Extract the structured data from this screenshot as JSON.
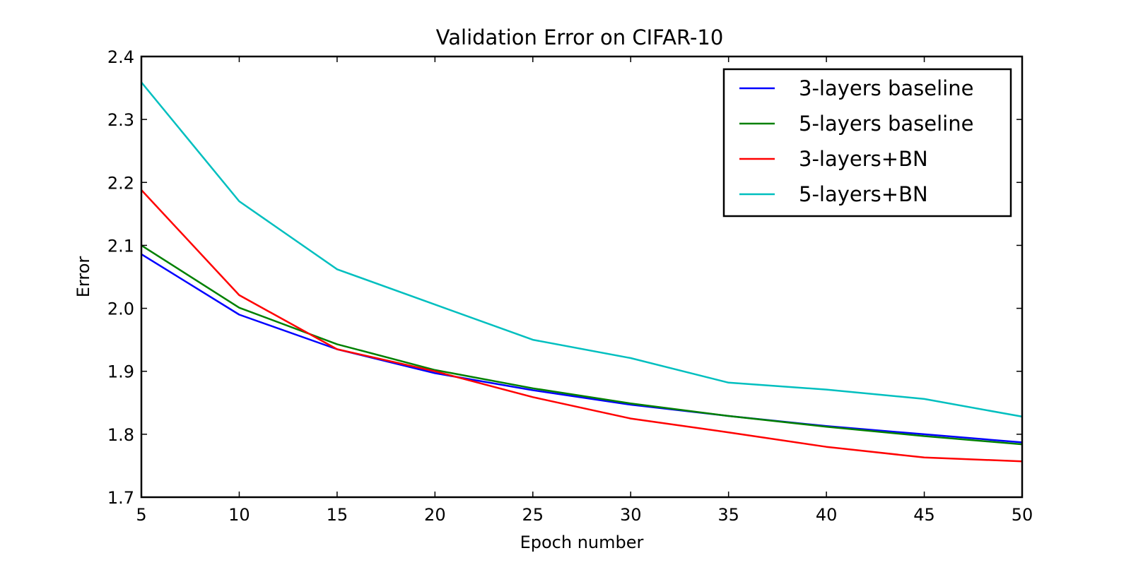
{
  "chart_data": {
    "type": "line",
    "title": "Validation Error on CIFAR-10",
    "xlabel": "Epoch number",
    "ylabel": "Error",
    "xlim": [
      5,
      50
    ],
    "ylim": [
      1.7,
      2.4
    ],
    "xticks": [
      5,
      10,
      15,
      20,
      25,
      30,
      35,
      40,
      45,
      50
    ],
    "xtick_labels": [
      "5",
      "10",
      "15",
      "20",
      "25",
      "30",
      "35",
      "40",
      "45",
      "50"
    ],
    "yticks": [
      1.7,
      1.8,
      1.9,
      2.0,
      2.1,
      2.2,
      2.3,
      2.4
    ],
    "ytick_labels": [
      "1.7",
      "1.8",
      "1.9",
      "2.0",
      "2.1",
      "2.2",
      "2.3",
      "2.4"
    ],
    "grid": false,
    "legend_position": "top-right",
    "x": [
      5,
      10,
      15,
      20,
      25,
      30,
      35,
      40,
      45,
      50
    ],
    "series": [
      {
        "name": "3-layers baseline",
        "color": "#0000ff",
        "values": [
          2.086,
          1.99,
          1.935,
          1.897,
          1.87,
          1.847,
          1.829,
          1.813,
          1.8,
          1.787
        ]
      },
      {
        "name": "5-layers baseline",
        "color": "#008000",
        "values": [
          2.1,
          2.001,
          1.943,
          1.902,
          1.873,
          1.849,
          1.829,
          1.812,
          1.797,
          1.784
        ]
      },
      {
        "name": "3-layers+BN",
        "color": "#ff0000",
        "values": [
          2.188,
          2.021,
          1.935,
          1.9,
          1.859,
          1.825,
          1.803,
          1.78,
          1.763,
          1.757
        ]
      },
      {
        "name": "5-layers+BN",
        "color": "#00bfbf",
        "values": [
          2.359,
          2.17,
          2.062,
          2.006,
          1.95,
          1.921,
          1.882,
          1.871,
          1.856,
          1.828
        ]
      }
    ]
  }
}
